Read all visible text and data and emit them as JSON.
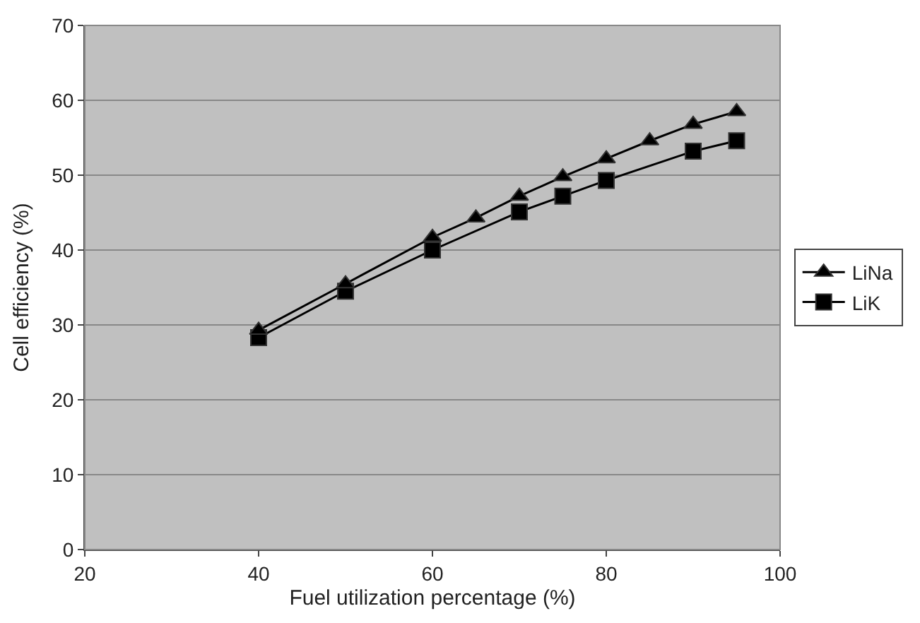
{
  "chart_data": {
    "type": "line",
    "xlabel": "Fuel utilization percentage (%)",
    "ylabel": "Cell efficiency (%)",
    "xlim": [
      20,
      100
    ],
    "xticks": [
      20,
      40,
      60,
      80,
      100
    ],
    "ylim": [
      0,
      70
    ],
    "yticks": [
      0,
      10,
      20,
      30,
      40,
      50,
      60,
      70
    ],
    "grid": "y",
    "legend": "right",
    "series": [
      {
        "name": "LiNa",
        "color": "#000000",
        "marker": "triangle",
        "x": [
          40,
          50,
          60,
          65,
          70,
          75,
          80,
          85,
          90,
          95
        ],
        "values": [
          29.3,
          35.5,
          41.7,
          44.3,
          47.2,
          49.8,
          52.2,
          54.6,
          56.8,
          58.5
        ]
      },
      {
        "name": "LiK",
        "color": "#000000",
        "marker": "square",
        "x": [
          40,
          50,
          60,
          70,
          75,
          80,
          90,
          95
        ],
        "values": [
          28.3,
          34.5,
          40,
          45.1,
          47.2,
          49.3,
          53.2,
          54.6
        ]
      }
    ]
  }
}
